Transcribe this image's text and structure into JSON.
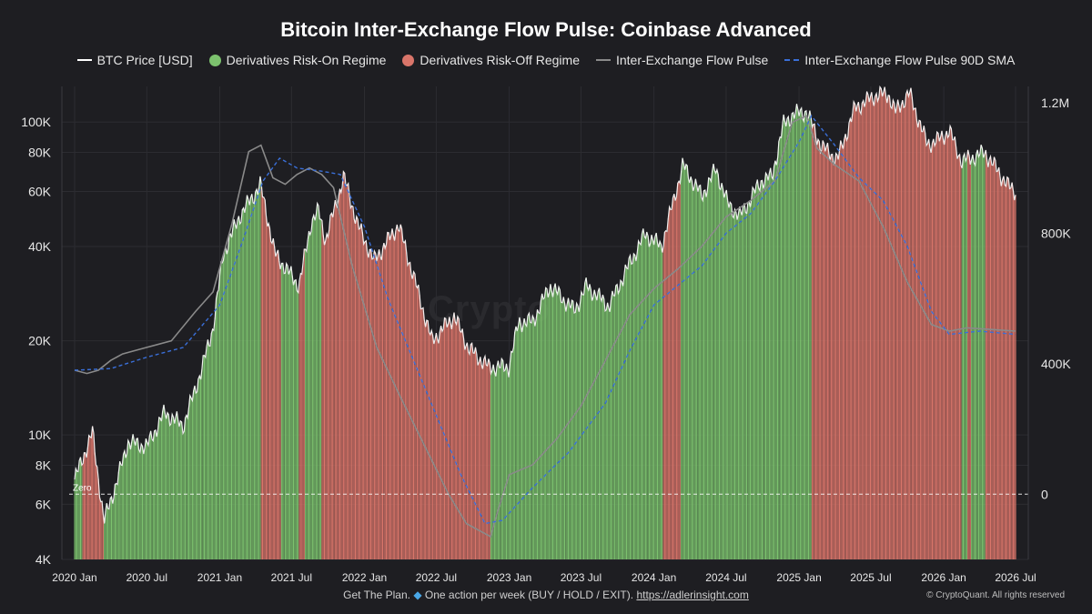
{
  "chart_data": {
    "type": "area",
    "title": "Bitcoin Inter-Exchange Flow Pulse: Coinbase Advanced",
    "legend": [
      {
        "name": "BTC Price [USD]",
        "style": "line",
        "color": "#ffffff"
      },
      {
        "name": "Derivatives Risk-On Regime",
        "style": "dot",
        "color": "#7cc26e"
      },
      {
        "name": "Derivatives Risk-Off Regime",
        "style": "dot",
        "color": "#d9756a"
      },
      {
        "name": "Inter-Exchange Flow Pulse",
        "style": "line",
        "color": "#8a8a8a"
      },
      {
        "name": "Inter-Exchange Flow Pulse 90D SMA",
        "style": "dash",
        "color": "#3a6fd8"
      }
    ],
    "legend_placement": "top-center",
    "x_axis": {
      "range": [
        "2020-01",
        "2026-07"
      ],
      "tick_labels": [
        "2020 Jan",
        "2020 Jul",
        "2021 Jan",
        "2021 Jul",
        "2022 Jan",
        "2022 Jul",
        "2023 Jan",
        "2023 Jul",
        "2024 Jan",
        "2024 Jul",
        "2025 Jan",
        "2025 Jul",
        "2026 Jan",
        "2026 Jul"
      ]
    },
    "y_left": {
      "label": "",
      "scale": "log",
      "range": [
        4000,
        130000
      ],
      "tick_labels": [
        "100K",
        "80K",
        "60K",
        "40K",
        "20K",
        "10K",
        "8K",
        "6K",
        "4K"
      ],
      "tick_values": [
        100000,
        80000,
        60000,
        40000,
        20000,
        10000,
        8000,
        6000,
        4000
      ]
    },
    "y_right": {
      "label": "",
      "scale": "linear",
      "range": [
        -200000,
        1250000
      ],
      "tick_labels": [
        "1.2M",
        "800K",
        "400K",
        "0"
      ],
      "tick_values": [
        1200000,
        800000,
        400000,
        0
      ]
    },
    "zero_line_label": "Zero",
    "grid": true,
    "btc_price": [
      [
        "2020-01-01",
        7200
      ],
      [
        "2020-02-15",
        10200
      ],
      [
        "2020-03-15",
        5300
      ],
      [
        "2020-04-15",
        7000
      ],
      [
        "2020-05-15",
        9500
      ],
      [
        "2020-07-01",
        9200
      ],
      [
        "2020-08-15",
        11800
      ],
      [
        "2020-10-01",
        10700
      ],
      [
        "2020-11-15",
        16000
      ],
      [
        "2020-12-15",
        22000
      ],
      [
        "2021-01-10",
        38000
      ],
      [
        "2021-02-20",
        50000
      ],
      [
        "2021-04-14",
        63000
      ],
      [
        "2021-05-20",
        38000
      ],
      [
        "2021-06-25",
        33000
      ],
      [
        "2021-07-20",
        30000
      ],
      [
        "2021-08-20",
        48000
      ],
      [
        "2021-09-07",
        52000
      ],
      [
        "2021-09-25",
        42000
      ],
      [
        "2021-11-10",
        67000
      ],
      [
        "2021-12-15",
        47000
      ],
      [
        "2022-01-25",
        36000
      ],
      [
        "2022-03-28",
        47000
      ],
      [
        "2022-05-15",
        29000
      ],
      [
        "2022-06-20",
        20000
      ],
      [
        "2022-08-15",
        24000
      ],
      [
        "2022-09-20",
        19000
      ],
      [
        "2022-11-10",
        16500
      ],
      [
        "2022-12-31",
        16500
      ],
      [
        "2023-01-25",
        23000
      ],
      [
        "2023-03-01",
        23000
      ],
      [
        "2023-04-14",
        30000
      ],
      [
        "2023-06-15",
        25000
      ],
      [
        "2023-07-15",
        30000
      ],
      [
        "2023-09-10",
        25800
      ],
      [
        "2023-10-25",
        34000
      ],
      [
        "2023-12-10",
        44000
      ],
      [
        "2024-01-20",
        40000
      ],
      [
        "2024-03-14",
        73000
      ],
      [
        "2024-05-01",
        58000
      ],
      [
        "2024-06-05",
        71000
      ],
      [
        "2024-07-05",
        55000
      ],
      [
        "2024-08-05",
        50000
      ],
      [
        "2024-09-28",
        65000
      ],
      [
        "2024-10-25",
        67000
      ],
      [
        "2024-11-22",
        98000
      ],
      [
        "2024-12-17",
        106000
      ],
      [
        "2025-01-20",
        108000
      ],
      [
        "2025-02-25",
        84000
      ],
      [
        "2025-04-08",
        76000
      ],
      [
        "2025-05-22",
        111000
      ],
      [
        "2025-07-14",
        122000
      ],
      [
        "2025-08-14",
        123000
      ],
      [
        "2025-09-01",
        108000
      ],
      [
        "2025-10-06",
        124000
      ],
      [
        "2025-11-20",
        85000
      ],
      [
        "2025-12-20",
        88000
      ],
      [
        "2026-01-15",
        94000
      ],
      [
        "2026-02-15",
        75000
      ],
      [
        "2026-04-15",
        80000
      ],
      [
        "2026-06-15",
        62000
      ],
      [
        "2026-07-01",
        60000
      ]
    ],
    "regimes": [
      {
        "start": "2020-01-01",
        "end": "2020-01-20",
        "regime": "risk-on"
      },
      {
        "start": "2020-01-20",
        "end": "2020-03-15",
        "regime": "risk-off"
      },
      {
        "start": "2020-03-15",
        "end": "2021-04-15",
        "regime": "risk-on"
      },
      {
        "start": "2021-04-15",
        "end": "2021-06-05",
        "regime": "risk-off"
      },
      {
        "start": "2021-06-05",
        "end": "2021-07-20",
        "regime": "risk-on"
      },
      {
        "start": "2021-07-20",
        "end": "2021-08-05",
        "regime": "risk-off"
      },
      {
        "start": "2021-08-05",
        "end": "2021-09-15",
        "regime": "risk-on"
      },
      {
        "start": "2021-09-15",
        "end": "2022-11-15",
        "regime": "risk-off"
      },
      {
        "start": "2022-11-15",
        "end": "2024-01-25",
        "regime": "risk-on"
      },
      {
        "start": "2024-01-25",
        "end": "2024-03-10",
        "regime": "risk-off"
      },
      {
        "start": "2024-03-10",
        "end": "2025-02-01",
        "regime": "risk-on"
      },
      {
        "start": "2025-02-01",
        "end": "2026-02-15",
        "regime": "risk-off"
      },
      {
        "start": "2026-02-15",
        "end": "2026-03-01",
        "regime": "risk-on"
      },
      {
        "start": "2026-03-01",
        "end": "2026-03-10",
        "regime": "risk-off"
      },
      {
        "start": "2026-03-10",
        "end": "2026-04-15",
        "regime": "risk-on"
      },
      {
        "start": "2026-04-15",
        "end": "2026-07-01",
        "regime": "risk-off"
      }
    ],
    "flow_pulse": [
      [
        "2020-01-01",
        380000
      ],
      [
        "2020-02-01",
        370000
      ],
      [
        "2020-03-01",
        380000
      ],
      [
        "2020-04-01",
        410000
      ],
      [
        "2020-05-01",
        430000
      ],
      [
        "2020-07-01",
        450000
      ],
      [
        "2020-09-01",
        470000
      ],
      [
        "2020-11-01",
        560000
      ],
      [
        "2020-12-15",
        620000
      ],
      [
        "2021-02-01",
        830000
      ],
      [
        "2021-03-15",
        1050000
      ],
      [
        "2021-04-15",
        1070000
      ],
      [
        "2021-05-15",
        970000
      ],
      [
        "2021-06-15",
        950000
      ],
      [
        "2021-07-15",
        980000
      ],
      [
        "2021-08-15",
        1000000
      ],
      [
        "2021-09-15",
        980000
      ],
      [
        "2021-10-15",
        940000
      ],
      [
        "2021-12-01",
        700000
      ],
      [
        "2022-02-01",
        450000
      ],
      [
        "2022-04-01",
        300000
      ],
      [
        "2022-06-01",
        150000
      ],
      [
        "2022-08-01",
        0
      ],
      [
        "2022-09-15",
        -90000
      ],
      [
        "2022-11-15",
        -130000
      ],
      [
        "2022-12-01",
        -60000
      ],
      [
        "2023-01-01",
        60000
      ],
      [
        "2023-03-01",
        90000
      ],
      [
        "2023-05-01",
        170000
      ],
      [
        "2023-07-01",
        270000
      ],
      [
        "2023-09-01",
        410000
      ],
      [
        "2023-11-01",
        550000
      ],
      [
        "2024-01-01",
        630000
      ],
      [
        "2024-03-01",
        690000
      ],
      [
        "2024-05-01",
        760000
      ],
      [
        "2024-07-01",
        850000
      ],
      [
        "2024-09-01",
        900000
      ],
      [
        "2024-11-01",
        960000
      ],
      [
        "2024-12-15",
        1140000
      ],
      [
        "2025-01-20",
        1160000
      ],
      [
        "2025-02-15",
        1060000
      ],
      [
        "2025-04-01",
        1010000
      ],
      [
        "2025-06-01",
        960000
      ],
      [
        "2025-08-01",
        820000
      ],
      [
        "2025-10-01",
        650000
      ],
      [
        "2025-12-01",
        520000
      ],
      [
        "2026-01-15",
        500000
      ],
      [
        "2026-03-01",
        510000
      ],
      [
        "2026-05-01",
        505000
      ],
      [
        "2026-07-01",
        500000
      ]
    ],
    "flow_pulse_sma90": [
      [
        "2020-01-01",
        380000
      ],
      [
        "2020-04-01",
        385000
      ],
      [
        "2020-07-01",
        420000
      ],
      [
        "2020-10-01",
        450000
      ],
      [
        "2021-01-01",
        580000
      ],
      [
        "2021-03-01",
        780000
      ],
      [
        "2021-04-20",
        960000
      ],
      [
        "2021-06-01",
        1030000
      ],
      [
        "2021-07-15",
        1000000
      ],
      [
        "2021-09-15",
        990000
      ],
      [
        "2021-11-01",
        980000
      ],
      [
        "2022-01-01",
        820000
      ],
      [
        "2022-03-01",
        600000
      ],
      [
        "2022-06-01",
        330000
      ],
      [
        "2022-09-01",
        60000
      ],
      [
        "2022-11-01",
        -90000
      ],
      [
        "2022-12-15",
        -80000
      ],
      [
        "2023-03-01",
        20000
      ],
      [
        "2023-06-01",
        130000
      ],
      [
        "2023-09-01",
        280000
      ],
      [
        "2023-11-01",
        440000
      ],
      [
        "2024-01-01",
        580000
      ],
      [
        "2024-03-01",
        640000
      ],
      [
        "2024-05-01",
        700000
      ],
      [
        "2024-07-01",
        800000
      ],
      [
        "2024-09-01",
        860000
      ],
      [
        "2024-11-01",
        960000
      ],
      [
        "2025-01-01",
        1080000
      ],
      [
        "2025-02-01",
        1160000
      ],
      [
        "2025-04-01",
        1070000
      ],
      [
        "2025-06-01",
        970000
      ],
      [
        "2025-08-01",
        900000
      ],
      [
        "2025-10-01",
        760000
      ],
      [
        "2025-12-01",
        560000
      ],
      [
        "2026-01-15",
        490000
      ],
      [
        "2026-04-01",
        500000
      ],
      [
        "2026-07-01",
        490000
      ]
    ]
  },
  "footer": {
    "text": "Get The Plan.",
    "icon": "diamond-icon",
    "text2": "One action per week (BUY / HOLD / EXIT).",
    "link": "https://adlerinsight.com"
  },
  "credit": "© CryptoQuant. All rights reserved",
  "watermark": "Crypto"
}
